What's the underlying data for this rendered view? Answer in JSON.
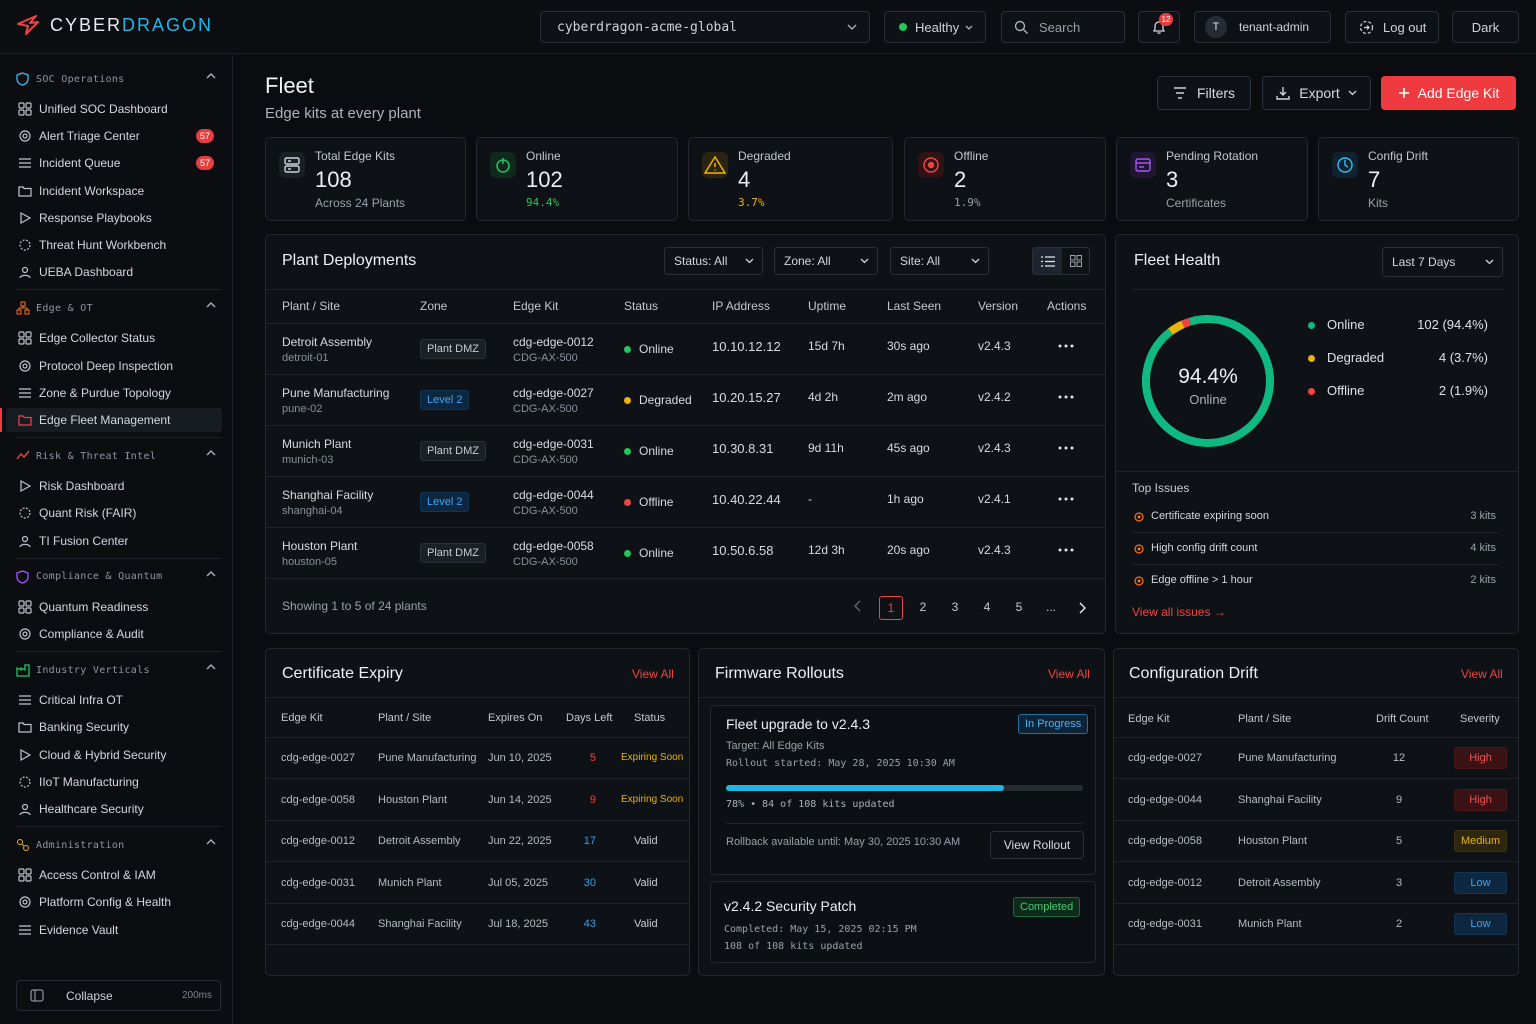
{
  "app": {
    "brand_prefix": "CYBER",
    "brand_suffix": "DRAGON"
  },
  "topbar": {
    "tenant_select": "cyberdragon-acme-global",
    "health_status": "Healthy",
    "search_placeholder": "Search",
    "notifications_count": "12",
    "user_initial": "T",
    "user_name": "tenant-admin",
    "logout_label": "Log out",
    "theme_label": "Dark"
  },
  "sidebar": {
    "sections": [
      {
        "title": "SOC Operations",
        "items": [
          {
            "label": "Unified SOC Dashboard"
          },
          {
            "label": "Alert Triage Center",
            "badge": "57"
          },
          {
            "label": "Incident Queue",
            "badge": "57"
          },
          {
            "label": "Incident Workspace"
          },
          {
            "label": "Response Playbooks"
          },
          {
            "label": "Threat Hunt Workbench"
          },
          {
            "label": "UEBA Dashboard"
          }
        ]
      },
      {
        "title": "Edge & OT",
        "items": [
          {
            "label": "Edge Collector Status"
          },
          {
            "label": "Protocol Deep Inspection"
          },
          {
            "label": "Zone & Purdue Topology"
          },
          {
            "label": "Edge Fleet Management",
            "active": true
          }
        ]
      },
      {
        "title": "Risk & Threat Intel",
        "items": [
          {
            "label": "Risk Dashboard"
          },
          {
            "label": "Quant Risk (FAIR)"
          },
          {
            "label": "TI Fusion Center"
          }
        ]
      },
      {
        "title": "Compliance & Quantum",
        "items": [
          {
            "label": "Quantum Readiness"
          },
          {
            "label": "Compliance & Audit"
          }
        ]
      },
      {
        "title": "Industry Verticals",
        "items": [
          {
            "label": "Critical Infra OT"
          },
          {
            "label": "Banking Security"
          },
          {
            "label": "Cloud & Hybrid Security"
          },
          {
            "label": "IIoT Manufacturing"
          },
          {
            "label": "Healthcare Security"
          }
        ]
      },
      {
        "title": "Administration",
        "items": [
          {
            "label": "Access Control & IAM"
          },
          {
            "label": "Platform Config & Health"
          },
          {
            "label": "Evidence Vault"
          }
        ]
      }
    ],
    "collapse_label": "Collapse",
    "collapse_hint": "200ms"
  },
  "page": {
    "title": "Fleet",
    "subtitle": "Edge kits at every plant",
    "filters_label": "Filters",
    "export_label": "Export",
    "add_label": "Add Edge Kit"
  },
  "kpis": [
    {
      "label": "Total Edge Kits",
      "value": "108",
      "sub": "Across 24 Plants",
      "icon": "server-icon",
      "color": "#cfd3da"
    },
    {
      "label": "Online",
      "value": "102",
      "sub": "94.4%",
      "icon": "power-icon",
      "color": "#22c55e"
    },
    {
      "label": "Degraded",
      "value": "4",
      "sub": "3.7%",
      "icon": "warning-icon",
      "color": "#eab308"
    },
    {
      "label": "Offline",
      "value": "2",
      "sub": "1.9%",
      "icon": "offline-icon",
      "color": "#ef4444"
    },
    {
      "label": "Pending Rotation",
      "value": "3",
      "sub": "Certificates",
      "icon": "certificate-icon",
      "color": "#a855f7"
    },
    {
      "label": "Config Drift",
      "value": "7",
      "sub": "Kits",
      "icon": "drift-icon",
      "color": "#38bdf8"
    }
  ],
  "deployments": {
    "title": "Plant Deployments",
    "filter_status": "Status: All",
    "filter_zone": "Zone: All",
    "filter_site": "Site: All",
    "columns": [
      "Plant / Site",
      "Zone",
      "Edge Kit",
      "Status",
      "IP Address",
      "Uptime",
      "Last Seen",
      "Version",
      "Actions"
    ],
    "rows": [
      {
        "plant": "Detroit Assembly",
        "site": "detroit-01",
        "zone": "Plant DMZ",
        "kit": "cdg-edge-0012",
        "model": "CDG-AX-500",
        "status": "Online",
        "ip": "10.10.12.12",
        "uptime": "15d 7h",
        "last_seen": "30s ago",
        "version": "v2.4.3"
      },
      {
        "plant": "Pune Manufacturing",
        "site": "pune-02",
        "zone": "Level 2",
        "kit": "cdg-edge-0027",
        "model": "CDG-AX-500",
        "status": "Degraded",
        "ip": "10.20.15.27",
        "uptime": "4d 2h",
        "last_seen": "2m ago",
        "version": "v2.4.2"
      },
      {
        "plant": "Munich Plant",
        "site": "munich-03",
        "zone": "Plant DMZ",
        "kit": "cdg-edge-0031",
        "model": "CDG-AX-500",
        "status": "Online",
        "ip": "10.30.8.31",
        "uptime": "9d 11h",
        "last_seen": "45s ago",
        "version": "v2.4.3"
      },
      {
        "plant": "Shanghai Facility",
        "site": "shanghai-04",
        "zone": "Level 2",
        "kit": "cdg-edge-0044",
        "model": "CDG-AX-500",
        "status": "Offline",
        "ip": "10.40.22.44",
        "uptime": "-",
        "last_seen": "1h ago",
        "version": "v2.4.1"
      },
      {
        "plant": "Houston Plant",
        "site": "houston-05",
        "zone": "Plant DMZ",
        "kit": "cdg-edge-0058",
        "model": "CDG-AX-500",
        "status": "Online",
        "ip": "10.50.6.58",
        "uptime": "12d 3h",
        "last_seen": "20s ago",
        "version": "v2.4.3"
      }
    ],
    "showing": "Showing 1 to 5 of 24 plants",
    "pages": [
      "1",
      "2",
      "3",
      "4",
      "5",
      "..."
    ]
  },
  "health": {
    "title": "Fleet Health",
    "range": "Last 7 Days",
    "center_value": "94.4%",
    "center_label": "Online",
    "segments": [
      {
        "name": "Online",
        "value": "102 (94.4%)",
        "fraction": 0.944,
        "color": "#10b981"
      },
      {
        "name": "Degraded",
        "value": "4 (3.7%)",
        "fraction": 0.037,
        "color": "#eab308"
      },
      {
        "name": "Offline",
        "value": "2 (1.9%)",
        "fraction": 0.019,
        "color": "#ef4444"
      }
    ],
    "issues_title": "Top Issues",
    "issues": [
      {
        "label": "Certificate expiring soon",
        "count": "3 kits"
      },
      {
        "label": "High config drift count",
        "count": "4 kits"
      },
      {
        "label": "Edge offline > 1 hour",
        "count": "2 kits"
      }
    ],
    "view_all_issues": "View all issues →"
  },
  "certificates": {
    "title": "Certificate Expiry",
    "view_all": "View All",
    "columns": [
      "Edge Kit",
      "Plant / Site",
      "Expires On",
      "Days Left",
      "Status"
    ],
    "rows": [
      {
        "kit": "cdg-edge-0027",
        "plant": "Pune Manufacturing",
        "expires": "Jun 10, 2025",
        "days": "5",
        "status": "Expiring Soon"
      },
      {
        "kit": "cdg-edge-0058",
        "plant": "Houston Plant",
        "expires": "Jun 14, 2025",
        "days": "9",
        "status": "Expiring Soon"
      },
      {
        "kit": "cdg-edge-0012",
        "plant": "Detroit Assembly",
        "expires": "Jun 22, 2025",
        "days": "17",
        "status": "Valid"
      },
      {
        "kit": "cdg-edge-0031",
        "plant": "Munich Plant",
        "expires": "Jul 05, 2025",
        "days": "30",
        "status": "Valid"
      },
      {
        "kit": "cdg-edge-0044",
        "plant": "Shanghai Facility",
        "expires": "Jul 18, 2025",
        "days": "43",
        "status": "Valid"
      }
    ]
  },
  "firmware": {
    "title": "Firmware Rollouts",
    "view_all": "View All",
    "active": {
      "name": "Fleet upgrade to v2.4.3",
      "badge": "In Progress",
      "target": "Target: All Edge Kits",
      "started": "Rollout started: May 28, 2025 10:30 AM",
      "progress": 0.78,
      "progress_text": "78% • 84 of 108 kits updated",
      "rollback": "Rollback available until: May 30, 2025 10:30 AM",
      "view_label": "View Rollout"
    },
    "completed": {
      "name": "v2.4.2 Security Patch",
      "badge": "Completed",
      "completed_at": "Completed: May 15, 2025 02:15 PM",
      "summary": "108 of 108 kits updated"
    }
  },
  "drift": {
    "title": "Configuration Drift",
    "view_all": "View All",
    "columns": [
      "Edge Kit",
      "Plant / Site",
      "Drift Count",
      "Severity"
    ],
    "rows": [
      {
        "kit": "cdg-edge-0027",
        "plant": "Pune Manufacturing",
        "count": "12",
        "severity": "High"
      },
      {
        "kit": "cdg-edge-0044",
        "plant": "Shanghai Facility",
        "count": "9",
        "severity": "High"
      },
      {
        "kit": "cdg-edge-0058",
        "plant": "Houston Plant",
        "count": "5",
        "severity": "Medium"
      },
      {
        "kit": "cdg-edge-0012",
        "plant": "Detroit Assembly",
        "count": "3",
        "severity": "Low"
      },
      {
        "kit": "cdg-edge-0031",
        "plant": "Munich Plant",
        "count": "2",
        "severity": "Low"
      }
    ]
  },
  "colors": {
    "accent": "#ef4444",
    "brand": "#20b7e8",
    "online": "#22c55e",
    "degraded": "#eab308",
    "offline": "#ef4444"
  }
}
